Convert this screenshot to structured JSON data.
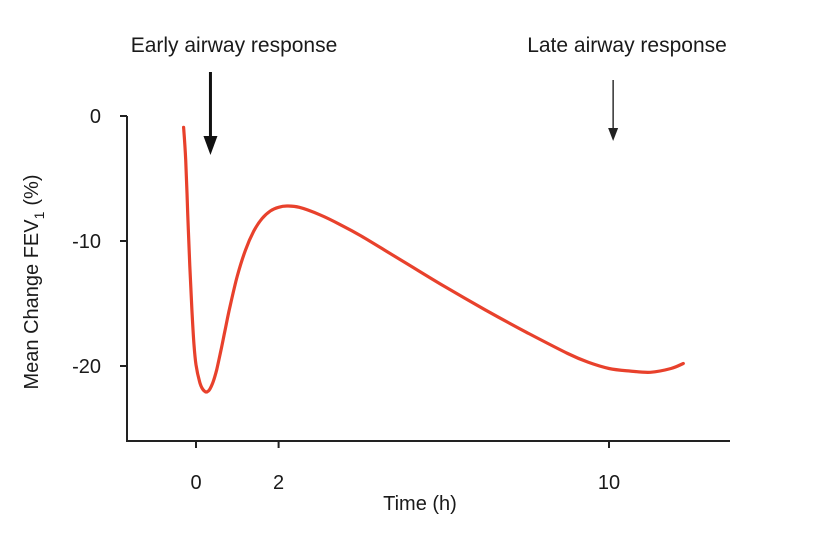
{
  "chart_data": {
    "type": "line",
    "title": "",
    "xlabel": "Time (h)",
    "ylabel": "Mean Change FEV",
    "ylabel_subscript": "1",
    "ylabel_suffix": "(%)",
    "xlim": [
      -1.2,
      12.6
    ],
    "ylim": [
      -26,
      0
    ],
    "x_ticks": [
      0,
      2,
      10
    ],
    "x_tick_labels": [
      "0",
      "2",
      "10"
    ],
    "y_ticks": [
      0,
      -10,
      -20
    ],
    "y_tick_labels": [
      "0",
      "-10",
      "-20"
    ],
    "grid": false,
    "series": [
      {
        "color": "#e8412c",
        "x": [
          -0.3,
          -0.25,
          -0.2,
          -0.15,
          -0.1,
          -0.05,
          0.0,
          0.1,
          0.2,
          0.3,
          0.4,
          0.5,
          0.6,
          0.7,
          0.8,
          1.0,
          1.2,
          1.4,
          1.6,
          1.8,
          2.0,
          2.2,
          2.5,
          3.0,
          3.5,
          4.0,
          5.0,
          6.0,
          7.0,
          8.0,
          9.0,
          9.5,
          10.0,
          10.5,
          11.0,
          11.5,
          11.8
        ],
        "values": [
          -0.9,
          -3.5,
          -7.8,
          -12.0,
          -15.5,
          -18.2,
          -19.9,
          -21.4,
          -22.0,
          -22.0,
          -21.4,
          -20.3,
          -18.8,
          -17.2,
          -15.6,
          -12.8,
          -10.7,
          -9.2,
          -8.2,
          -7.6,
          -7.3,
          -7.2,
          -7.3,
          -7.9,
          -8.7,
          -9.6,
          -11.6,
          -13.6,
          -15.5,
          -17.3,
          -19.0,
          -19.7,
          -20.2,
          -20.4,
          -20.5,
          -20.2,
          -19.8
        ]
      }
    ],
    "annotations": [
      {
        "text": "Early airway response",
        "x": 0.35,
        "arrow": "thick"
      },
      {
        "text": "Late airway response",
        "x": 10.1,
        "arrow": "thin"
      }
    ]
  }
}
